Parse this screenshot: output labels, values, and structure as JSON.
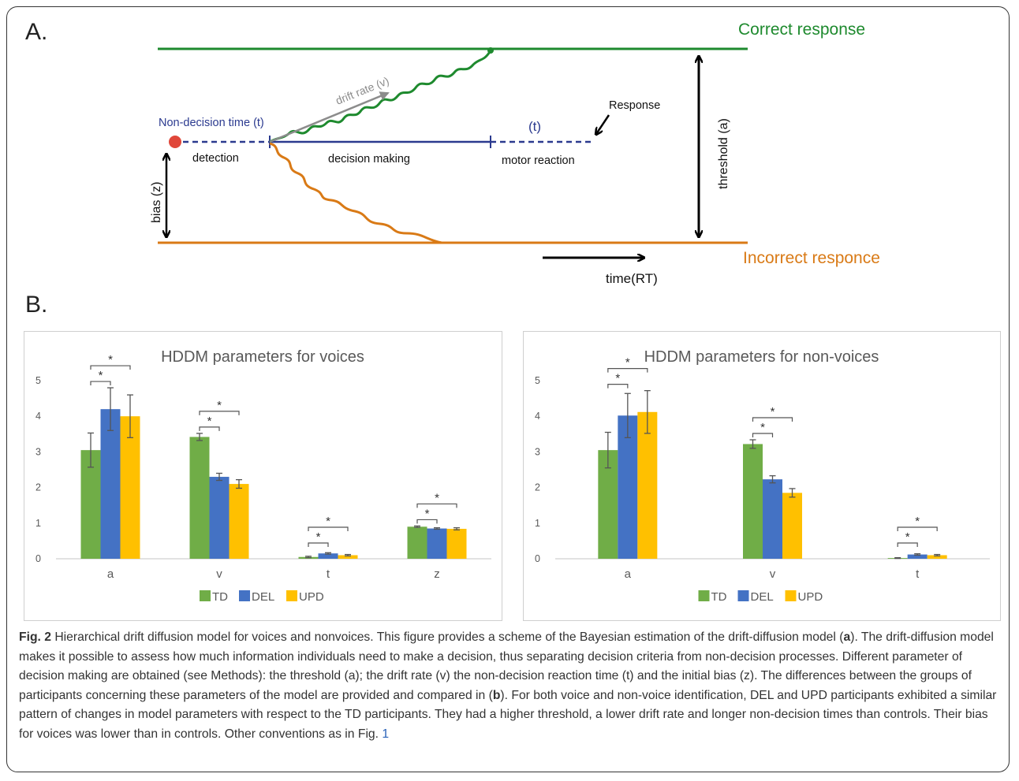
{
  "panel_a": {
    "label": "A.",
    "correct_label": "Correct response",
    "incorrect_label": "Incorrect responce",
    "non_decision_label": "Non-decision time (t)",
    "drift_label": "drift rate (v)",
    "response_label": "Response",
    "t_label": "(t)",
    "detection_label": "detection",
    "decision_label": "decision making",
    "motor_label": "motor reaction",
    "bias_label": "bias (z)",
    "threshold_label": "threshold (a)",
    "time_label": "time(RT)",
    "colors": {
      "correct": "#1e8a2e",
      "incorrect": "#d97a16",
      "timeline": "#2b3a8f",
      "start": "#e0473a",
      "drift": "#8c8c8c"
    }
  },
  "panel_b": {
    "label": "B."
  },
  "chart_data": [
    {
      "type": "bar",
      "title": "HDDM parameters for voices",
      "categories": [
        "a",
        "v",
        "t",
        "z"
      ],
      "ylim": [
        0,
        5
      ],
      "yticks": [
        "0",
        "1",
        "2",
        "3",
        "4",
        "5"
      ],
      "grid": false,
      "legend": "bottom",
      "series": [
        {
          "name": "TD",
          "color": "#70ad47",
          "values": [
            3.05,
            3.42,
            0.05,
            0.9
          ],
          "errors": [
            0.48,
            0.1,
            0.02,
            0.02
          ]
        },
        {
          "name": "DEL",
          "color": "#4472c4",
          "values": [
            4.2,
            2.3,
            0.15,
            0.85
          ],
          "errors": [
            0.6,
            0.1,
            0.02,
            0.02
          ]
        },
        {
          "name": "UPD",
          "color": "#ffc000",
          "values": [
            4.0,
            2.1,
            0.1,
            0.84
          ],
          "errors": [
            0.6,
            0.12,
            0.02,
            0.03
          ]
        }
      ],
      "significance": [
        {
          "category": 0,
          "pair": [
            0,
            1
          ],
          "level": 1,
          "label": "*"
        },
        {
          "category": 0,
          "pair": [
            0,
            2
          ],
          "level": 2,
          "label": "*"
        },
        {
          "category": 1,
          "pair": [
            0,
            1
          ],
          "level": 1,
          "label": "*"
        },
        {
          "category": 1,
          "pair": [
            0,
            2
          ],
          "level": 2,
          "label": "*"
        },
        {
          "category": 2,
          "pair": [
            0,
            1
          ],
          "level": 1,
          "label": "*"
        },
        {
          "category": 2,
          "pair": [
            0,
            2
          ],
          "level": 2,
          "label": "*"
        },
        {
          "category": 3,
          "pair": [
            0,
            1
          ],
          "level": 1,
          "label": "*"
        },
        {
          "category": 3,
          "pair": [
            0,
            2
          ],
          "level": 2,
          "label": "*"
        }
      ]
    },
    {
      "type": "bar",
      "title": "HDDM parameters for non-voices",
      "categories": [
        "a",
        "v",
        "t"
      ],
      "ylim": [
        0,
        5
      ],
      "yticks": [
        "0",
        "1",
        "2",
        "3",
        "4",
        "5"
      ],
      "grid": false,
      "legend": "bottom",
      "series": [
        {
          "name": "TD",
          "color": "#70ad47",
          "values": [
            3.05,
            3.22,
            0.02
          ],
          "errors": [
            0.5,
            0.12,
            0.01
          ]
        },
        {
          "name": "DEL",
          "color": "#4472c4",
          "values": [
            4.02,
            2.23,
            0.12
          ],
          "errors": [
            0.62,
            0.1,
            0.02
          ]
        },
        {
          "name": "UPD",
          "color": "#ffc000",
          "values": [
            4.12,
            1.85,
            0.1
          ],
          "errors": [
            0.6,
            0.12,
            0.02
          ]
        }
      ],
      "significance": [
        {
          "category": 0,
          "pair": [
            0,
            1
          ],
          "level": 1,
          "label": "*"
        },
        {
          "category": 0,
          "pair": [
            0,
            2
          ],
          "level": 2,
          "label": "*"
        },
        {
          "category": 1,
          "pair": [
            0,
            1
          ],
          "level": 1,
          "label": "*"
        },
        {
          "category": 1,
          "pair": [
            0,
            2
          ],
          "level": 2,
          "label": "*"
        },
        {
          "category": 2,
          "pair": [
            0,
            1
          ],
          "level": 1,
          "label": "*"
        },
        {
          "category": 2,
          "pair": [
            0,
            2
          ],
          "level": 2,
          "label": "*"
        }
      ]
    }
  ],
  "caption": {
    "fig": "Fig. 2",
    "t1": " Hierarchical drift diffusion model for voices and nonvoices. This figure provides a scheme of the Bayesian estimation of the drift-diffusion model (",
    "a": "a",
    "t2": "). The drift-diffusion model makes it possible to assess how much information individuals need to make a decision, thus separating decision criteria from non-decision processes. Different parameter of decision making are obtained (see Methods): the threshold (a); the drift rate (v) the non-decision reaction time (t) and the initial bias (z). The differences between the groups of participants concerning these parameters of the model are provided and compared in (",
    "b": "b",
    "t3": "). For both voice and non-voice identification, DEL and UPD participants exhibited a similar pattern of changes in model parameters with respect to the TD participants. They had a higher threshold, a lower drift rate and longer non-decision times than controls. Their bias for voices was lower than in controls. Other conventions as in Fig. ",
    "ref": "1"
  }
}
